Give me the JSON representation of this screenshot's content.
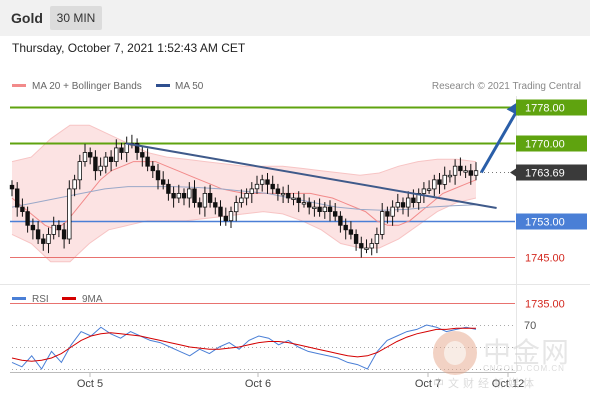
{
  "header": {
    "title": "Gold",
    "timeframe": "30 MIN"
  },
  "datetime": "Thursday, October 7, 2021 1:52:43 AM CET",
  "legend": {
    "items": [
      {
        "label": "MA 20 + Bollinger Bands",
        "color": "#f28a8a"
      },
      {
        "label": "MA 50",
        "color": "#2f4f8f"
      }
    ],
    "credit": "Research © 2021 Trading Central"
  },
  "rsi_legend": {
    "items": [
      {
        "label": "RSI",
        "color": "#4a7fd6"
      },
      {
        "label": "9MA",
        "color": "#d40000"
      }
    ]
  },
  "colors": {
    "resistance": "#5fa30f",
    "support_blue": "#4a7fd6",
    "support_red": "#e8726f",
    "candle": "#111111",
    "trendline": "#3f5a8a",
    "arrow": "#2a5ea8",
    "bollinger_fill": "#fbdada",
    "ma20": "#f28a8a",
    "ma50": "#9aa8c8",
    "current_price_bg": "#3a3a3a"
  },
  "chart_data": [
    {
      "type": "candlestick",
      "title": "Gold",
      "price_range": [
        1732,
        1781
      ],
      "x_tick_labels": [
        "Oct 5",
        "Oct 6",
        "Oct 7",
        "Oct 12"
      ],
      "levels": [
        {
          "value": 1778.0,
          "label": "1778.00",
          "kind": "resistance"
        },
        {
          "value": 1770.0,
          "label": "1770.00",
          "kind": "resistance"
        },
        {
          "value": 1763.69,
          "label": "1763.69",
          "kind": "current"
        },
        {
          "value": 1753.0,
          "label": "1753.00",
          "kind": "support"
        },
        {
          "value": 1745.0,
          "label": "1745.00",
          "kind": "support"
        },
        {
          "value": 1735.0,
          "label": "1735.00",
          "kind": "support"
        }
      ],
      "closes": [
        1760,
        1756,
        1755,
        1752,
        1751,
        1749,
        1748,
        1750,
        1752,
        1751,
        1749,
        1760,
        1762,
        1766,
        1768,
        1767,
        1764,
        1765,
        1767,
        1766,
        1769,
        1768,
        1770,
        1770,
        1768,
        1767,
        1765,
        1764,
        1762,
        1761,
        1759,
        1758,
        1759,
        1758,
        1760,
        1757,
        1756,
        1759,
        1757,
        1756,
        1754,
        1753,
        1755,
        1757,
        1758,
        1759,
        1760,
        1761,
        1762,
        1761,
        1760,
        1759,
        1759,
        1758,
        1758,
        1757,
        1757,
        1756,
        1756,
        1755,
        1756,
        1755,
        1754,
        1752,
        1751,
        1750,
        1748,
        1747,
        1747,
        1748,
        1750,
        1755,
        1754,
        1756,
        1757,
        1756,
        1758,
        1757,
        1759,
        1760,
        1760,
        1762,
        1761,
        1763,
        1763,
        1765,
        1764,
        1764,
        1763,
        1764
      ],
      "ma20": [
        1758,
        1756,
        1754,
        1752,
        1751,
        1753,
        1756,
        1759,
        1762,
        1764,
        1765,
        1766,
        1766,
        1766,
        1765,
        1764,
        1763,
        1762,
        1761,
        1760,
        1759.5,
        1759,
        1759,
        1759,
        1759,
        1759,
        1759,
        1759,
        1758.5,
        1758,
        1757,
        1756,
        1755,
        1753,
        1752,
        1752,
        1753,
        1755,
        1757,
        1759,
        1760,
        1761,
        1762
      ],
      "ma50": [
        1756,
        1757,
        1758,
        1759,
        1760,
        1760.5,
        1760.5,
        1760.5,
        1760.3,
        1760,
        1759.5,
        1759,
        1758,
        1757,
        1756,
        1755.5,
        1755.3,
        1755.5,
        1756,
        1756.3,
        1756.5
      ],
      "bb_upper": [
        1766,
        1767,
        1771,
        1774,
        1774,
        1772,
        1770,
        1768,
        1767,
        1766.5,
        1766,
        1765.5,
        1765,
        1765,
        1765,
        1764.5,
        1764,
        1763.5,
        1763,
        1763.5,
        1765,
        1766,
        1766.5,
        1766.5,
        1766
      ],
      "bb_lower": [
        1750,
        1748,
        1744,
        1744,
        1748,
        1751,
        1752,
        1753,
        1753,
        1753,
        1753.5,
        1754,
        1754.5,
        1755,
        1754.5,
        1753,
        1751,
        1748,
        1747,
        1747,
        1749,
        1752,
        1755,
        1757,
        1758
      ],
      "trendline": [
        [
          1,
          1770.0
        ],
        [
          3.18,
          1755.8
        ]
      ],
      "projection_arrow": [
        [
          3.09,
          1763.6
        ],
        [
          3.3,
          1778.5
        ]
      ]
    },
    {
      "type": "line",
      "title": "RSI",
      "ylim": [
        20,
        80
      ],
      "reference_levels": [
        70,
        50,
        30
      ],
      "reference_label": "70",
      "series": [
        {
          "name": "RSI",
          "values": [
            36,
            32,
            42,
            30,
            46,
            36,
            52,
            64,
            60,
            68,
            62,
            58,
            64,
            60,
            56,
            54,
            50,
            46,
            42,
            48,
            44,
            50,
            54,
            48,
            56,
            60,
            58,
            52,
            56,
            50,
            46,
            44,
            42,
            40,
            36,
            34,
            30,
            46,
            56,
            60,
            64,
            66,
            70,
            68,
            64,
            66,
            68,
            66
          ]
        },
        {
          "name": "9MA",
          "values": [
            40,
            38,
            37,
            38,
            40,
            44,
            50,
            56,
            60,
            62,
            63,
            62,
            61,
            60,
            58,
            56,
            54,
            52,
            50,
            49,
            48,
            48,
            49,
            50,
            52,
            54,
            55,
            55,
            54,
            52,
            50,
            48,
            46,
            44,
            42,
            41,
            42,
            45,
            50,
            55,
            59,
            62,
            64,
            66,
            66,
            67,
            67,
            67
          ]
        }
      ]
    }
  ],
  "watermark": {
    "cn_name": "中金网",
    "url": "CNGOLD.COM.CN",
    "sub": "中文财经新媒体"
  }
}
